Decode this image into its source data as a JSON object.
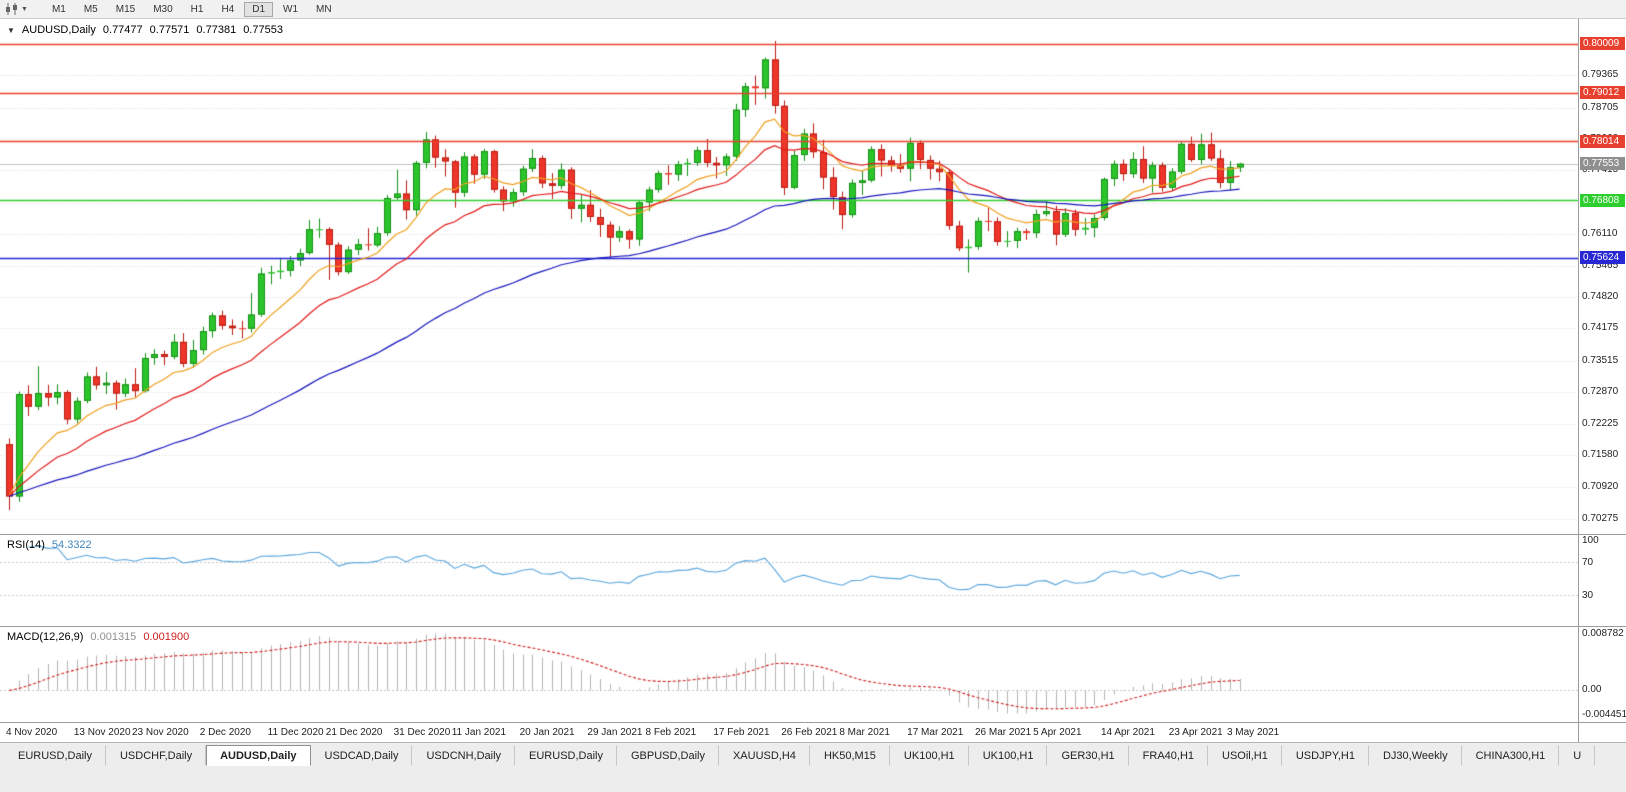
{
  "toolbar": {
    "timeframes": [
      "M1",
      "M5",
      "M15",
      "M30",
      "H1",
      "H4",
      "D1",
      "W1",
      "MN"
    ],
    "active": "D1"
  },
  "chart_data": {
    "type": "candlestick",
    "symbol_period": "AUDUSD,Daily",
    "display": {
      "open": "0.77477",
      "high": "0.77571",
      "low": "0.77381",
      "close": "0.77553"
    },
    "current_price": 0.77553,
    "scale": {
      "max": 0.8052,
      "min": 0.6996
    },
    "bar_spacing": 9.69,
    "colors": {
      "bg": "#ffffff",
      "grid": "#dadada",
      "up": "#2bc42b",
      "up_border": "#169016",
      "down": "#ef342a",
      "down_border": "#b81c12",
      "current_line": "#c0c0c0",
      "current_badge": "#8f8f8f"
    },
    "price_axis_labels": [
      "0.80010",
      "0.79365",
      "0.78705",
      "0.78060",
      "0.77415",
      "0.76755",
      "0.76110",
      "0.75465",
      "0.74820",
      "0.74175",
      "0.73515",
      "0.72870",
      "0.72225",
      "0.71580",
      "0.70920",
      "0.70275"
    ],
    "hlines": [
      {
        "label": "0.80009",
        "value": 0.80009,
        "color": "#e8402f"
      },
      {
        "label": "0.79012",
        "value": 0.79012,
        "color": "#e8402f"
      },
      {
        "label": "0.78014",
        "value": 0.78014,
        "color": "#e8402f"
      },
      {
        "label": "0.76808",
        "value": 0.76808,
        "color": "#2fce2f"
      },
      {
        "label": "0.75624",
        "value": 0.75624,
        "color": "#2727d4"
      }
    ],
    "moving_averages": [
      {
        "period": 10,
        "color": "#efa021"
      },
      {
        "period": 20,
        "color": "#e21b1b"
      },
      {
        "period": 55,
        "color": "#1717bd"
      }
    ],
    "ohlc": [
      [
        0.718,
        0.7192,
        0.7045,
        0.7073
      ],
      [
        0.7073,
        0.7288,
        0.7062,
        0.7283
      ],
      [
        0.7283,
        0.7301,
        0.7238,
        0.7257
      ],
      [
        0.7257,
        0.734,
        0.725,
        0.7285
      ],
      [
        0.7285,
        0.7302,
        0.7258,
        0.7276
      ],
      [
        0.7276,
        0.7303,
        0.7262,
        0.7287
      ],
      [
        0.7287,
        0.7291,
        0.7221,
        0.7231
      ],
      [
        0.7231,
        0.7276,
        0.7223,
        0.7269
      ],
      [
        0.7269,
        0.7327,
        0.7264,
        0.7319
      ],
      [
        0.7319,
        0.7339,
        0.7292,
        0.7301
      ],
      [
        0.7301,
        0.7328,
        0.7283,
        0.7306
      ],
      [
        0.7306,
        0.7311,
        0.7251,
        0.7284
      ],
      [
        0.7284,
        0.7315,
        0.7277,
        0.7303
      ],
      [
        0.7303,
        0.7336,
        0.7276,
        0.7289
      ],
      [
        0.7289,
        0.7367,
        0.7286,
        0.7357
      ],
      [
        0.7357,
        0.7375,
        0.7343,
        0.7365
      ],
      [
        0.7365,
        0.7372,
        0.7342,
        0.7359
      ],
      [
        0.7359,
        0.7406,
        0.7354,
        0.739
      ],
      [
        0.739,
        0.7408,
        0.7338,
        0.7345
      ],
      [
        0.7345,
        0.7394,
        0.7337,
        0.7373
      ],
      [
        0.7373,
        0.7421,
        0.7364,
        0.7412
      ],
      [
        0.7412,
        0.745,
        0.7399,
        0.7444
      ],
      [
        0.7444,
        0.7454,
        0.7415,
        0.7423
      ],
      [
        0.7423,
        0.7436,
        0.7404,
        0.7418
      ],
      [
        0.7418,
        0.7433,
        0.7397,
        0.7417
      ],
      [
        0.7417,
        0.749,
        0.7409,
        0.7446
      ],
      [
        0.7446,
        0.7542,
        0.7441,
        0.753
      ],
      [
        0.753,
        0.7546,
        0.7508,
        0.7533
      ],
      [
        0.7533,
        0.756,
        0.7519,
        0.7536
      ],
      [
        0.7536,
        0.7566,
        0.7524,
        0.7557
      ],
      [
        0.7557,
        0.7581,
        0.7545,
        0.7572
      ],
      [
        0.7572,
        0.764,
        0.7569,
        0.7621
      ],
      [
        0.7621,
        0.7643,
        0.7603,
        0.7621
      ],
      [
        0.7621,
        0.7625,
        0.7517,
        0.7589
      ],
      [
        0.7589,
        0.7594,
        0.7526,
        0.7533
      ],
      [
        0.7533,
        0.7586,
        0.7529,
        0.7579
      ],
      [
        0.7579,
        0.7601,
        0.7568,
        0.759
      ],
      [
        0.759,
        0.7623,
        0.7577,
        0.7588
      ],
      [
        0.7588,
        0.7626,
        0.7584,
        0.7613
      ],
      [
        0.7613,
        0.7691,
        0.7607,
        0.7685
      ],
      [
        0.7685,
        0.7743,
        0.7681,
        0.7694
      ],
      [
        0.7694,
        0.7721,
        0.7641,
        0.766
      ],
      [
        0.766,
        0.7761,
        0.7649,
        0.7757
      ],
      [
        0.7757,
        0.782,
        0.7746,
        0.7805
      ],
      [
        0.7805,
        0.7813,
        0.7747,
        0.7768
      ],
      [
        0.7768,
        0.7785,
        0.7729,
        0.776
      ],
      [
        0.776,
        0.7763,
        0.7665,
        0.7696
      ],
      [
        0.7696,
        0.7779,
        0.7687,
        0.777
      ],
      [
        0.777,
        0.7775,
        0.7714,
        0.7733
      ],
      [
        0.7733,
        0.7786,
        0.7724,
        0.7781
      ],
      [
        0.7781,
        0.7784,
        0.7696,
        0.7702
      ],
      [
        0.7702,
        0.7709,
        0.7658,
        0.7678
      ],
      [
        0.7678,
        0.7704,
        0.7667,
        0.7697
      ],
      [
        0.7697,
        0.7751,
        0.7689,
        0.7745
      ],
      [
        0.7745,
        0.7785,
        0.7738,
        0.7767
      ],
      [
        0.7767,
        0.7772,
        0.7705,
        0.7715
      ],
      [
        0.7715,
        0.7736,
        0.7683,
        0.771
      ],
      [
        0.771,
        0.7756,
        0.7703,
        0.7743
      ],
      [
        0.7743,
        0.7748,
        0.7642,
        0.7663
      ],
      [
        0.7663,
        0.7691,
        0.7635,
        0.7671
      ],
      [
        0.7671,
        0.7701,
        0.7636,
        0.7646
      ],
      [
        0.7646,
        0.7663,
        0.7605,
        0.763
      ],
      [
        0.763,
        0.7637,
        0.7564,
        0.7604
      ],
      [
        0.7604,
        0.7627,
        0.7595,
        0.7617
      ],
      [
        0.7617,
        0.7621,
        0.7581,
        0.76
      ],
      [
        0.76,
        0.7681,
        0.7587,
        0.7676
      ],
      [
        0.7676,
        0.7708,
        0.7658,
        0.7702
      ],
      [
        0.7702,
        0.7741,
        0.7696,
        0.7736
      ],
      [
        0.7736,
        0.7752,
        0.7712,
        0.7733
      ],
      [
        0.7733,
        0.7761,
        0.772,
        0.7754
      ],
      [
        0.7754,
        0.7766,
        0.773,
        0.7757
      ],
      [
        0.7757,
        0.779,
        0.7751,
        0.7783
      ],
      [
        0.7783,
        0.7806,
        0.7748,
        0.7757
      ],
      [
        0.7757,
        0.7769,
        0.7725,
        0.7752
      ],
      [
        0.7752,
        0.7776,
        0.773,
        0.777
      ],
      [
        0.777,
        0.7878,
        0.7761,
        0.7866
      ],
      [
        0.7866,
        0.7921,
        0.7851,
        0.7914
      ],
      [
        0.7914,
        0.7936,
        0.7876,
        0.791
      ],
      [
        0.791,
        0.7973,
        0.7889,
        0.7969
      ],
      [
        0.7969,
        0.8007,
        0.7858,
        0.7874
      ],
      [
        0.7874,
        0.7885,
        0.7691,
        0.7706
      ],
      [
        0.7706,
        0.7782,
        0.7703,
        0.7773
      ],
      [
        0.7773,
        0.7827,
        0.7761,
        0.7817
      ],
      [
        0.7817,
        0.7838,
        0.7767,
        0.7779
      ],
      [
        0.7779,
        0.7804,
        0.7703,
        0.7727
      ],
      [
        0.7727,
        0.7748,
        0.7661,
        0.7687
      ],
      [
        0.7687,
        0.7698,
        0.7621,
        0.765
      ],
      [
        0.765,
        0.7723,
        0.7645,
        0.7716
      ],
      [
        0.7716,
        0.7741,
        0.7691,
        0.7721
      ],
      [
        0.7721,
        0.7791,
        0.7717,
        0.7785
      ],
      [
        0.7785,
        0.7795,
        0.7729,
        0.7762
      ],
      [
        0.7762,
        0.7771,
        0.7739,
        0.7752
      ],
      [
        0.7752,
        0.7775,
        0.7737,
        0.7745
      ],
      [
        0.7745,
        0.7809,
        0.7719,
        0.7798
      ],
      [
        0.7798,
        0.7803,
        0.7744,
        0.7763
      ],
      [
        0.7763,
        0.7772,
        0.7723,
        0.7745
      ],
      [
        0.7745,
        0.7761,
        0.7719,
        0.7738
      ],
      [
        0.7738,
        0.7743,
        0.762,
        0.7628
      ],
      [
        0.7628,
        0.7638,
        0.7576,
        0.7582
      ],
      [
        0.7582,
        0.76,
        0.7532,
        0.7585
      ],
      [
        0.7585,
        0.7645,
        0.7579,
        0.7638
      ],
      [
        0.7638,
        0.7665,
        0.7617,
        0.7637
      ],
      [
        0.7637,
        0.7645,
        0.7587,
        0.7595
      ],
      [
        0.7595,
        0.7617,
        0.7584,
        0.7597
      ],
      [
        0.7597,
        0.7624,
        0.7582,
        0.7617
      ],
      [
        0.7617,
        0.7622,
        0.7599,
        0.7613
      ],
      [
        0.7613,
        0.7661,
        0.7603,
        0.7652
      ],
      [
        0.7652,
        0.7678,
        0.7647,
        0.7658
      ],
      [
        0.7658,
        0.7669,
        0.7588,
        0.761
      ],
      [
        0.761,
        0.7664,
        0.7605,
        0.7654
      ],
      [
        0.7654,
        0.7661,
        0.7607,
        0.762
      ],
      [
        0.762,
        0.7644,
        0.7609,
        0.7624
      ],
      [
        0.7624,
        0.7651,
        0.7604,
        0.7644
      ],
      [
        0.7644,
        0.7727,
        0.7639,
        0.7724
      ],
      [
        0.7724,
        0.7762,
        0.7709,
        0.7755
      ],
      [
        0.7755,
        0.7764,
        0.772,
        0.7734
      ],
      [
        0.7734,
        0.7779,
        0.7726,
        0.7765
      ],
      [
        0.7765,
        0.7791,
        0.7716,
        0.7725
      ],
      [
        0.7725,
        0.7759,
        0.7696,
        0.7752
      ],
      [
        0.7752,
        0.7758,
        0.7698,
        0.7706
      ],
      [
        0.7706,
        0.7746,
        0.77,
        0.7739
      ],
      [
        0.7739,
        0.7801,
        0.7734,
        0.7796
      ],
      [
        0.7796,
        0.7811,
        0.7759,
        0.7763
      ],
      [
        0.7763,
        0.7817,
        0.7754,
        0.7795
      ],
      [
        0.7795,
        0.7819,
        0.7761,
        0.7766
      ],
      [
        0.7766,
        0.7784,
        0.7705,
        0.7716
      ],
      [
        0.7716,
        0.7761,
        0.7701,
        0.7748
      ],
      [
        0.77477,
        0.77571,
        0.77381,
        0.77553
      ]
    ],
    "date_labels": [
      {
        "i": 0,
        "t": "4 Nov 2020"
      },
      {
        "i": 7,
        "t": "13 Nov 2020"
      },
      {
        "i": 13,
        "t": "23 Nov 2020"
      },
      {
        "i": 20,
        "t": "2 Dec 2020"
      },
      {
        "i": 27,
        "t": "11 Dec 2020"
      },
      {
        "i": 33,
        "t": "21 Dec 2020"
      },
      {
        "i": 40,
        "t": "31 Dec 2020"
      },
      {
        "i": 46,
        "t": "11 Jan 2021"
      },
      {
        "i": 53,
        "t": "20 Jan 2021"
      },
      {
        "i": 60,
        "t": "29 Jan 2021"
      },
      {
        "i": 66,
        "t": "8 Feb 2021"
      },
      {
        "i": 73,
        "t": "17 Feb 2021"
      },
      {
        "i": 80,
        "t": "26 Feb 2021"
      },
      {
        "i": 86,
        "t": "8 Mar 2021"
      },
      {
        "i": 93,
        "t": "17 Mar 2021"
      },
      {
        "i": 100,
        "t": "26 Mar 2021"
      },
      {
        "i": 106,
        "t": "5 Apr 2021"
      },
      {
        "i": 113,
        "t": "14 Apr 2021"
      },
      {
        "i": 120,
        "t": "23 Apr 2021"
      },
      {
        "i": 126,
        "t": "3 May 2021"
      }
    ]
  },
  "indicators": {
    "rsi": {
      "name": "RSI(14)",
      "value": "54.3322",
      "period": 14,
      "levels": [
        "100",
        "70",
        "30"
      ],
      "color": "#58a5dc",
      "level_line_color": "#c8c8c8"
    },
    "macd": {
      "name": "MACD(12,26,9)",
      "value_main": "0.001315",
      "value_signal": "0.001900",
      "axis_max": "0.008782",
      "axis_zero": "0.00",
      "axis_min": "-0.004451",
      "histogram_color": "#b4b4b4",
      "signal_color": "#cf2020"
    }
  },
  "tabs": {
    "active_index": 2,
    "items": [
      "EURUSD,Daily",
      "USDCHF,Daily",
      "AUDUSD,Daily",
      "USDCAD,Daily",
      "USDCNH,Daily",
      "EURUSD,Daily",
      "GBPUSD,Daily",
      "XAUUSD,H4",
      "HK50,M15",
      "UK100,H1",
      "UK100,H1",
      "GER30,H1",
      "FRA40,H1",
      "USOil,H1",
      "USDJPY,H1",
      "DJ30,Weekly",
      "CHINA300,H1",
      "U"
    ]
  }
}
